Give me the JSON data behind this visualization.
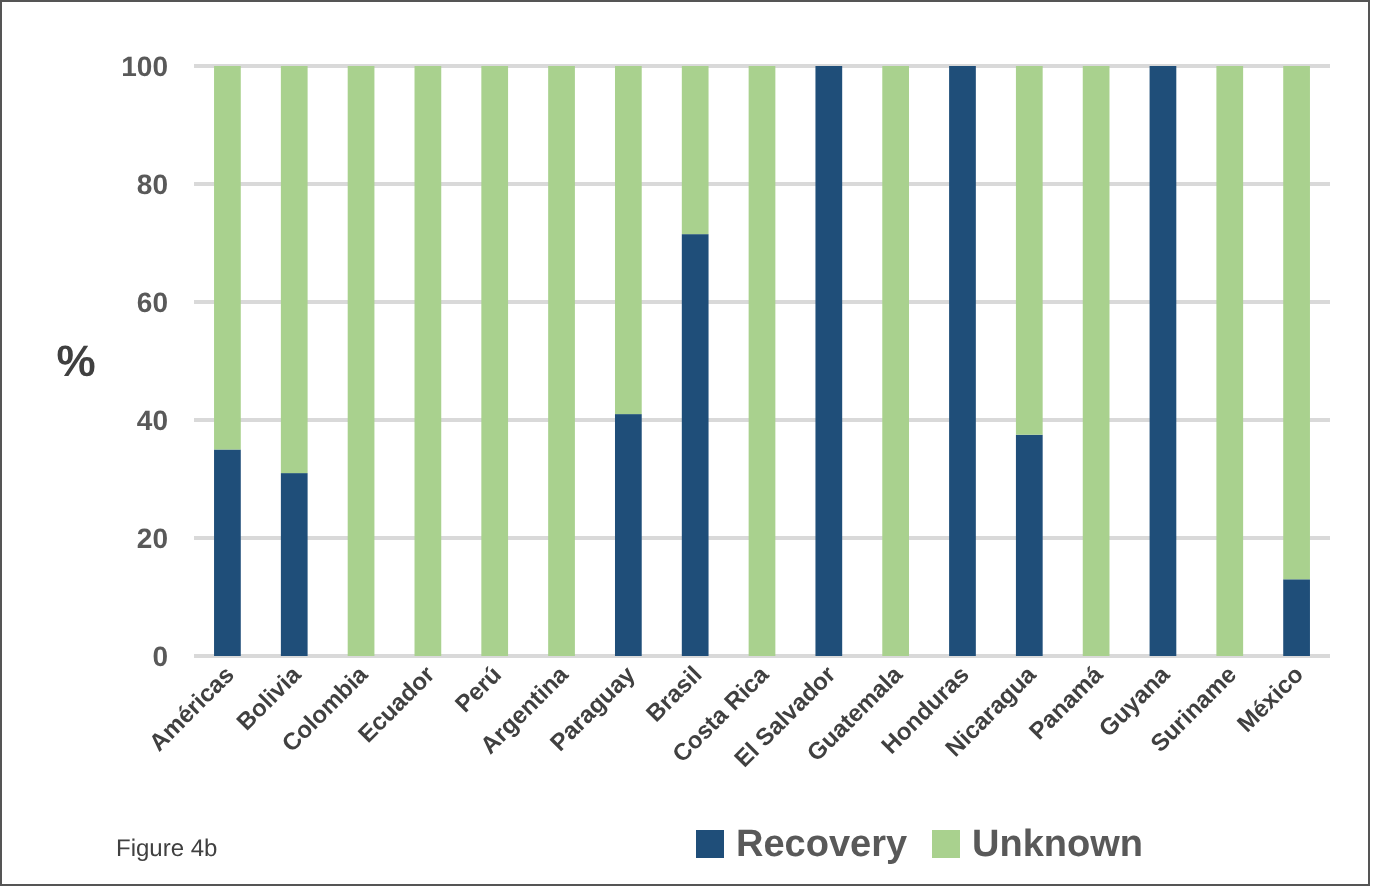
{
  "chart_data": {
    "type": "bar",
    "stacked": true,
    "ylabel": "%",
    "categories": [
      "Américas",
      "Bolivia",
      "Colombia",
      "Ecuador",
      "Perú",
      "Argentina",
      "Paraguay",
      "Brasil",
      "Costa Rica",
      "El Salvador",
      "Guatemala",
      "Honduras",
      "Nicaragua",
      "Panamá",
      "Guyana",
      "Suriname",
      "México"
    ],
    "series": [
      {
        "name": "Recovery",
        "color": "#1f4e79",
        "values": [
          35,
          31,
          0,
          0,
          0,
          0,
          41,
          71.5,
          0,
          100,
          0,
          100,
          37.5,
          0,
          100,
          0,
          13
        ]
      },
      {
        "name": "Unknown",
        "color": "#a9d18e",
        "values": [
          65,
          69,
          100,
          100,
          100,
          100,
          59,
          28.5,
          100,
          0,
          100,
          0,
          62.5,
          100,
          0,
          100,
          87
        ]
      }
    ],
    "ylim": [
      0,
      100
    ],
    "yticks": [
      0,
      20,
      40,
      60,
      80,
      100
    ],
    "grid": "y",
    "legend": "bottom right",
    "annotations": [
      "Figure 4b"
    ]
  }
}
